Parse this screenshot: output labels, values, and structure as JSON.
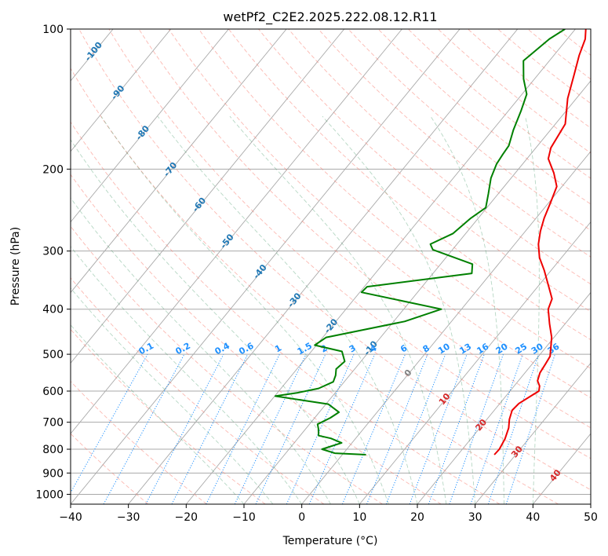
{
  "chart_data": {
    "type": "line",
    "subtype": "skew-t log-p diagram",
    "title": "wetPf2_C2E2.2025.222.08.12.R11",
    "xlabel": "Temperature (°C)",
    "ylabel": "Pressure (hPa)",
    "xlim": [
      -40,
      50
    ],
    "ylim": [
      1050,
      100
    ],
    "y_scale": "log",
    "grid": true,
    "x_ticks": [
      -40,
      -30,
      -20,
      -10,
      0,
      10,
      20,
      30,
      40,
      50
    ],
    "x_tick_labels": [
      "−40",
      "−30",
      "−20",
      "−10",
      "0",
      "10",
      "20",
      "30",
      "40",
      "50"
    ],
    "y_ticks": [
      100,
      200,
      300,
      400,
      500,
      600,
      700,
      800,
      900,
      1000
    ],
    "y_tick_labels": [
      "100",
      "200",
      "300",
      "400",
      "500",
      "600",
      "700",
      "800",
      "900",
      "1000"
    ],
    "colors": {
      "temperature": "#ee0000",
      "dewpoint": "#008000",
      "isotherm_grid": "#a9a9a9",
      "dry_adiabat": "#fa8072",
      "moist_adiabat": "#2e8b57",
      "mixing_ratio": "#1e90ff",
      "mixing_ratio_label": "#1e90ff",
      "isotherm_label": "#1f77b4",
      "hot_isotherm_label": "#d62728",
      "zero_label": "#808080",
      "tan_curve": "#d2b48c"
    },
    "isotherm_labels": [
      {
        "text": "-100",
        "T": -100,
        "p": 111
      },
      {
        "text": "-90",
        "T": -90,
        "p": 136
      },
      {
        "text": "-80",
        "T": -80,
        "p": 166
      },
      {
        "text": "-70",
        "T": -70,
        "p": 199
      },
      {
        "text": "-60",
        "T": -60,
        "p": 237
      },
      {
        "text": "-50",
        "T": -50,
        "p": 284
      },
      {
        "text": "-40",
        "T": -40,
        "p": 330
      },
      {
        "text": "-30",
        "T": -30,
        "p": 380
      },
      {
        "text": "-20",
        "T": -20,
        "p": 432
      },
      {
        "text": "-10",
        "T": -10,
        "p": 482
      },
      {
        "text": "0",
        "T": 0,
        "p": 545
      },
      {
        "text": "10",
        "T": 10,
        "p": 620
      },
      {
        "text": "20",
        "T": 20,
        "p": 705
      },
      {
        "text": "30",
        "T": 30,
        "p": 805
      },
      {
        "text": "40",
        "T": 40,
        "p": 905
      }
    ],
    "mixing_ratio_values": [
      0.1,
      0.2,
      0.4,
      0.6,
      1,
      1.5,
      2,
      3,
      4,
      6,
      8,
      10,
      13,
      16,
      20,
      25,
      30,
      36
    ],
    "mixing_ratio_labels": [
      "0.1",
      "0.2",
      "0.4",
      "0.6",
      "1",
      "1.5",
      "2",
      "3",
      "4",
      "6",
      "8",
      "10",
      "13",
      "16",
      "20",
      "25",
      "30",
      "36"
    ],
    "series": [
      {
        "name": "",
        "variable": "temperature",
        "points": [
          [
            26.3,
            822
          ],
          [
            26.4,
            800
          ],
          [
            25.9,
            760
          ],
          [
            25.0,
            720
          ],
          [
            23.9,
            690
          ],
          [
            23.1,
            660
          ],
          [
            23.3,
            638
          ],
          [
            24.3,
            615
          ],
          [
            25.0,
            600
          ],
          [
            24.4,
            585
          ],
          [
            23.3,
            570
          ],
          [
            22.6,
            548
          ],
          [
            22.3,
            525
          ],
          [
            22.0,
            505
          ],
          [
            20.7,
            480
          ],
          [
            19.6,
            460
          ],
          [
            17.3,
            430
          ],
          [
            15.0,
            400
          ],
          [
            14.2,
            380
          ],
          [
            11.6,
            355
          ],
          [
            8.8,
            330
          ],
          [
            6.2,
            310
          ],
          [
            4.1,
            290
          ],
          [
            2.6,
            272
          ],
          [
            1.4,
            255
          ],
          [
            0.3,
            236
          ],
          [
            -0.9,
            218
          ],
          [
            -3.3,
            204
          ],
          [
            -6.3,
            190
          ],
          [
            -7.4,
            180
          ],
          [
            -8.3,
            160
          ],
          [
            -11.5,
            141
          ],
          [
            -13.8,
            125
          ],
          [
            -15.6,
            114
          ],
          [
            -16.9,
            105
          ],
          [
            -18.2,
            100
          ]
        ]
      },
      {
        "name": "",
        "variable": "dewpoint",
        "points": [
          [
            4.1,
            822
          ],
          [
            -1.5,
            816
          ],
          [
            -4.3,
            800
          ],
          [
            -1.8,
            775
          ],
          [
            -4.3,
            758
          ],
          [
            -6.8,
            748
          ],
          [
            -7.8,
            723
          ],
          [
            -8.6,
            707
          ],
          [
            -7.3,
            685
          ],
          [
            -6.6,
            666
          ],
          [
            -9.6,
            640
          ],
          [
            -19.9,
            615
          ],
          [
            -16.5,
            605
          ],
          [
            -13.5,
            592
          ],
          [
            -11.9,
            573
          ],
          [
            -12.4,
            555
          ],
          [
            -13.2,
            538
          ],
          [
            -12.8,
            518
          ],
          [
            -14.7,
            493
          ],
          [
            -20.3,
            478
          ],
          [
            -19.4,
            460
          ],
          [
            -8.1,
            425
          ],
          [
            -3.5,
            400
          ],
          [
            -19.7,
            368
          ],
          [
            -19.5,
            358
          ],
          [
            -3.3,
            335
          ],
          [
            -4.5,
            320
          ],
          [
            -13.4,
            298
          ],
          [
            -14.6,
            290
          ],
          [
            -12.2,
            275
          ],
          [
            -11.3,
            255
          ],
          [
            -10.2,
            242
          ],
          [
            -11.7,
            226
          ],
          [
            -13.5,
            209
          ],
          [
            -14.5,
            195
          ],
          [
            -14.8,
            186
          ],
          [
            -15.0,
            178
          ],
          [
            -16.4,
            165
          ],
          [
            -17.8,
            150
          ],
          [
            -19.2,
            138
          ],
          [
            -21.9,
            128
          ],
          [
            -24.5,
            117
          ],
          [
            -23.1,
            105
          ],
          [
            -21.8,
            100
          ]
        ]
      }
    ]
  }
}
